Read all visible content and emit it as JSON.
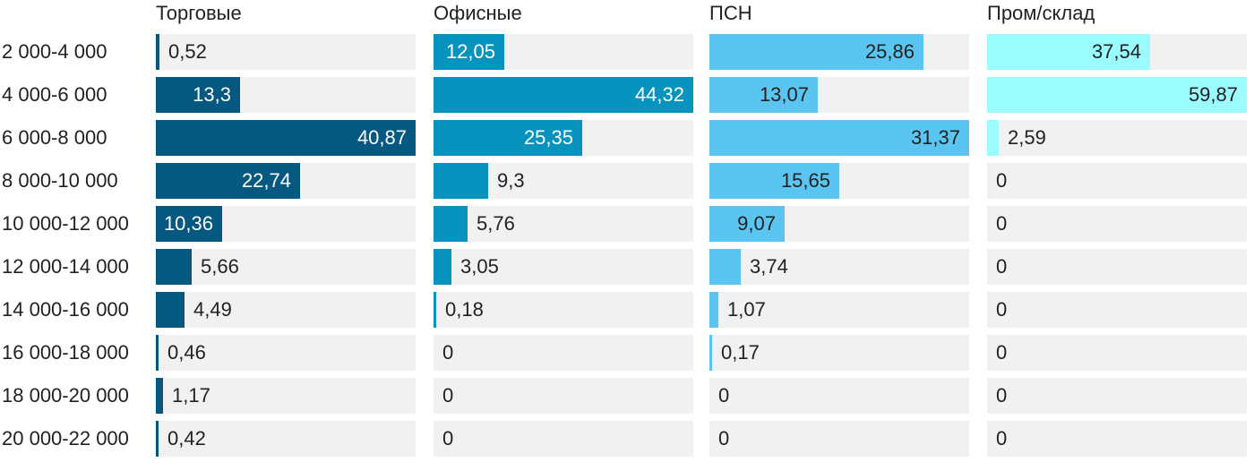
{
  "chart_data": {
    "type": "bar",
    "orientation": "horizontal",
    "layout": "small-multiples",
    "title": "",
    "xlabel": "",
    "ylabel": "",
    "xlim": [
      0,
      44.32
    ],
    "categories": [
      "2 000-4 000",
      "4 000-6 000",
      "6 000-8 000",
      "8 000-10 000",
      "10 000-12 000",
      "12 000-14 000",
      "14 000-16 000",
      "16 000-18 000",
      "18 000-20 000",
      "20 000-22 000"
    ],
    "series": [
      {
        "name": "Торговые",
        "color": "#05587f",
        "label_color": "#ffffff",
        "xlim": [
          0,
          40.87
        ],
        "values": [
          0.52,
          13.3,
          40.87,
          22.74,
          10.36,
          5.66,
          4.49,
          0.46,
          1.17,
          0.42
        ],
        "labels": [
          "0,52",
          "13,3",
          "40,87",
          "22,74",
          "10,36",
          "5,66",
          "4,49",
          "0,46",
          "1,17",
          "0,42"
        ]
      },
      {
        "name": "Офисные",
        "color": "#0694bf",
        "label_color": "#ffffff",
        "xlim": [
          0,
          44.32
        ],
        "values": [
          12.05,
          44.32,
          25.35,
          9.3,
          5.76,
          3.05,
          0.18,
          0,
          0,
          0
        ],
        "labels": [
          "12,05",
          "44,32",
          "25,35",
          "9,3",
          "5,76",
          "3,05",
          "0,18",
          "0",
          "0",
          "0"
        ]
      },
      {
        "name": "ПСН",
        "color": "#5bc5f2",
        "label_color": "#222222",
        "xlim": [
          0,
          31.37
        ],
        "values": [
          25.86,
          13.07,
          31.37,
          15.65,
          9.07,
          3.74,
          1.07,
          0.17,
          0,
          0
        ],
        "labels": [
          "25,86",
          "13,07",
          "31,37",
          "15,65",
          "9,07",
          "3,74",
          "1,07",
          "0,17",
          "0",
          "0"
        ]
      },
      {
        "name": "Пром/склад",
        "color": "#9afcfe",
        "label_color": "#222222",
        "xlim": [
          0,
          59.87
        ],
        "values": [
          37.54,
          59.87,
          2.59,
          0,
          0,
          0,
          0,
          0,
          0,
          0
        ],
        "labels": [
          "37,54",
          "59,87",
          "2,59",
          "0",
          "0",
          "0",
          "0",
          "0",
          "0",
          "0"
        ]
      }
    ]
  }
}
